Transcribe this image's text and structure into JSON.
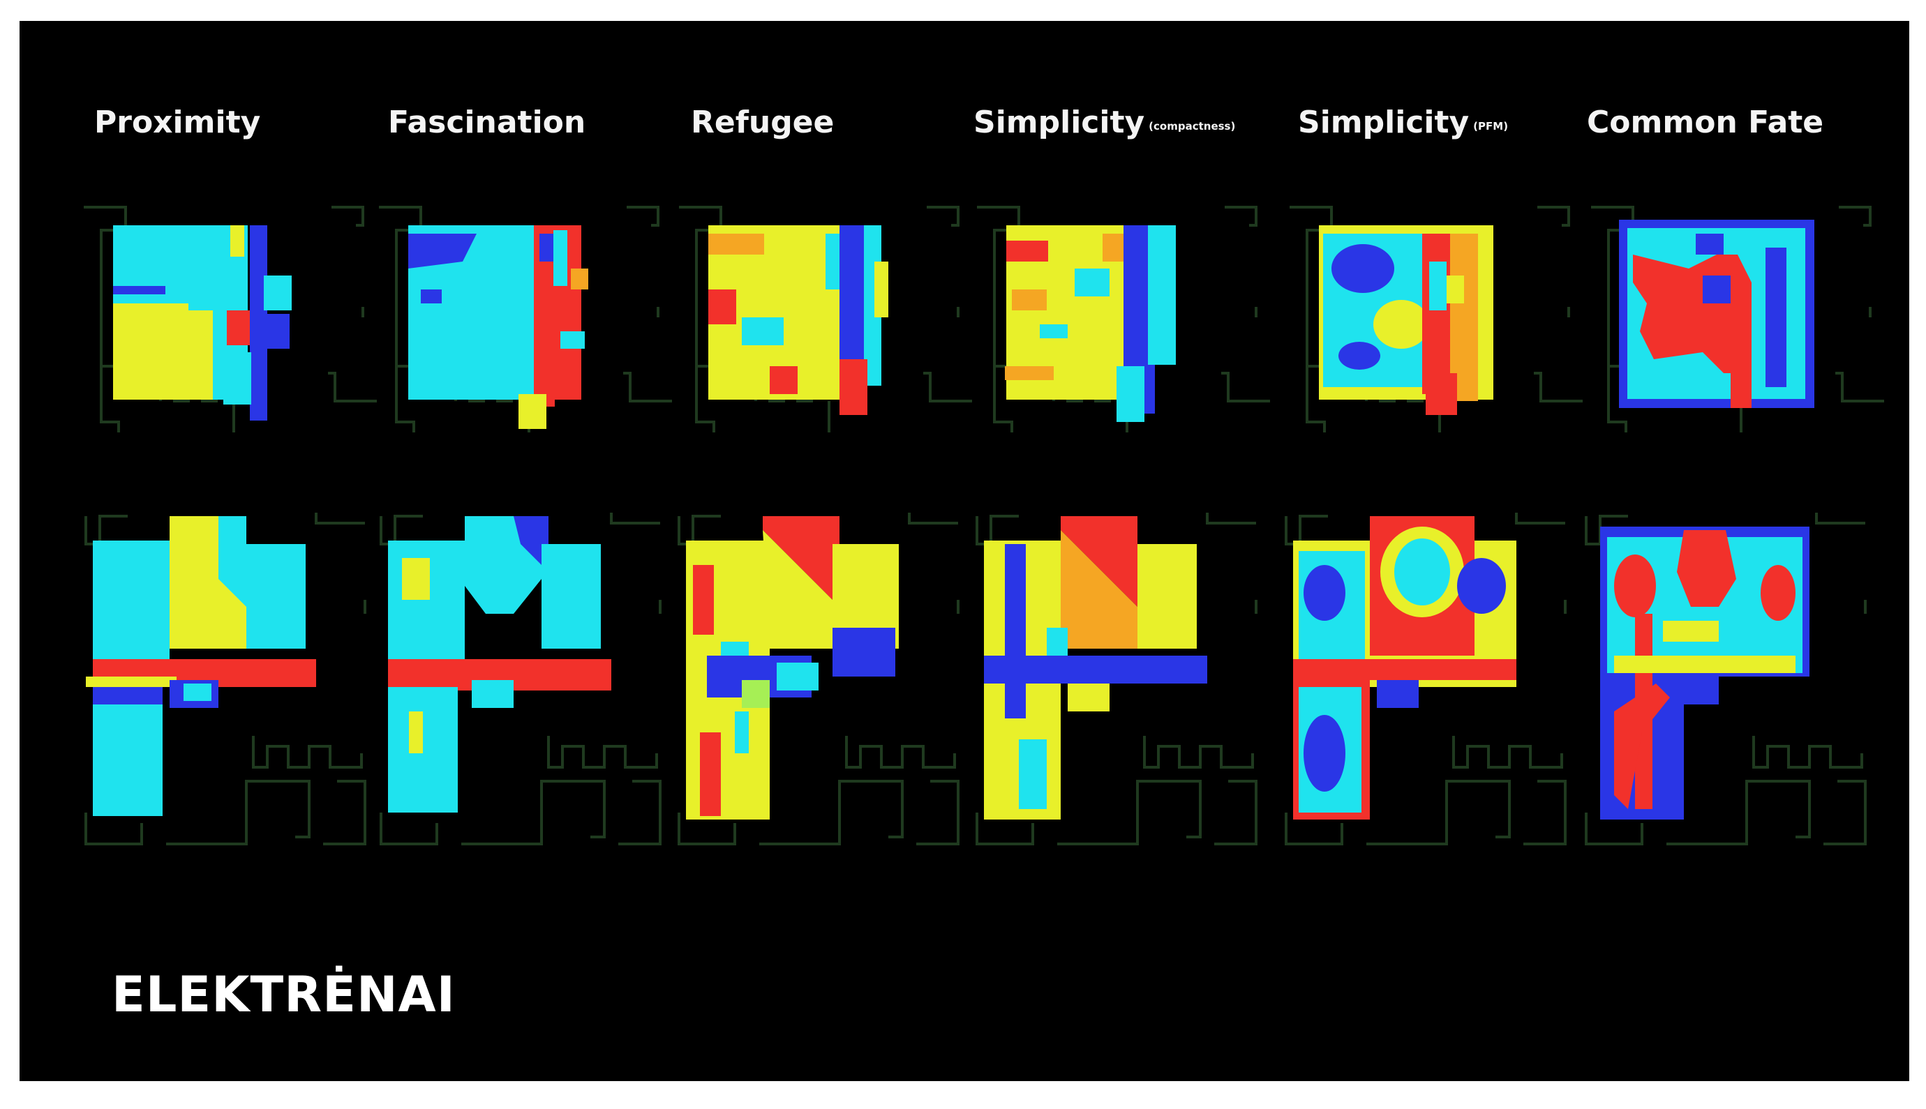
{
  "columns": [
    {
      "title": "Proximity",
      "subtitle": ""
    },
    {
      "title": "Fascination",
      "subtitle": ""
    },
    {
      "title": "Refugee",
      "subtitle": ""
    },
    {
      "title": "Simplicity",
      "subtitle": "(compactness)"
    },
    {
      "title": "Simplicity",
      "subtitle": "(PFM)"
    },
    {
      "title": "Common Fate",
      "subtitle": ""
    }
  ],
  "footer": "ELEKTRĖNAI",
  "colors": {
    "background": "#000000",
    "outline": "#1f3a1f",
    "blue": "#2a36e6",
    "cyan": "#1fe3ee",
    "yellow": "#e8f02a",
    "orange": "#f5a623",
    "red": "#f2312b",
    "lime": "#a6ef55"
  }
}
